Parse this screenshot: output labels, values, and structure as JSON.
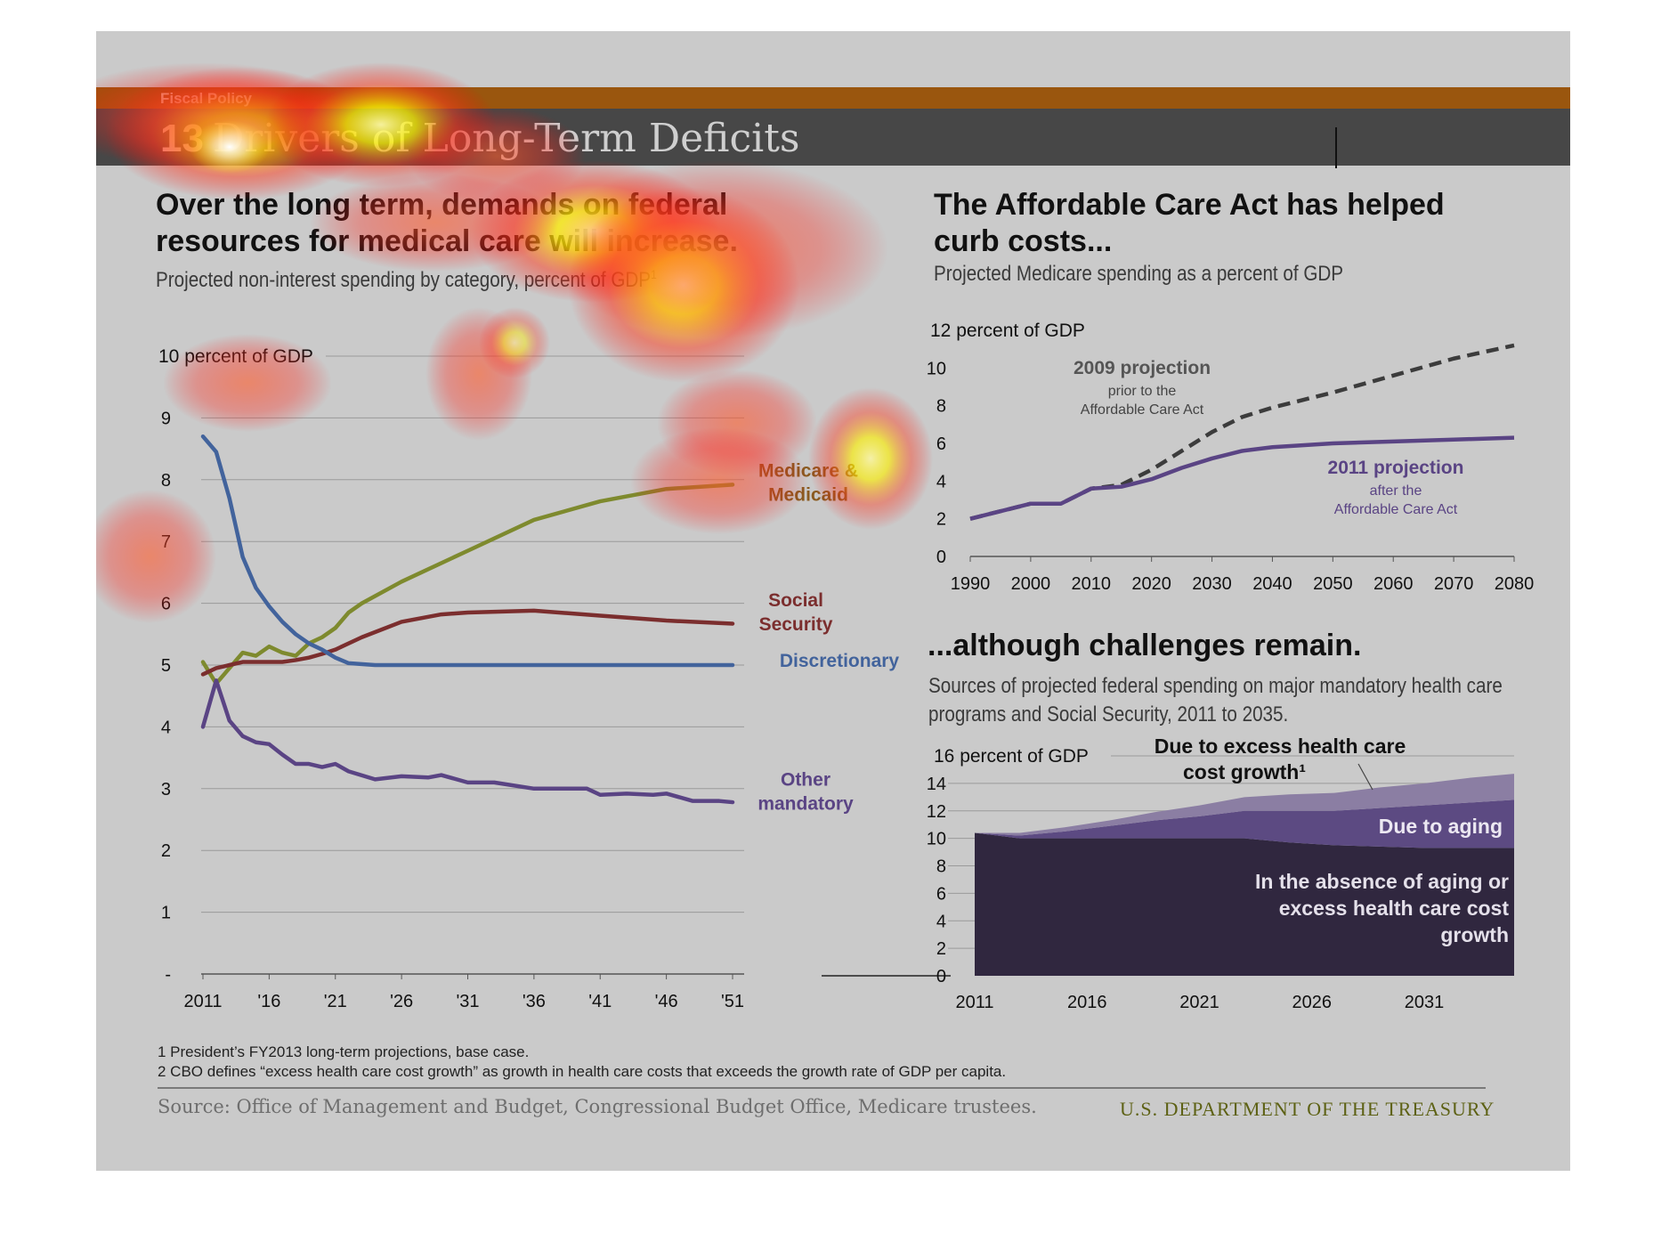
{
  "header": {
    "kicker": "Fiscal Policy",
    "number": "13",
    "title": "Drivers of Long-Term Deficits"
  },
  "left_panel": {
    "headline_line1": "Over the long term, demands on federal",
    "headline_line2": "resources for medical care will increase.",
    "subtitle": "Projected non-interest spending by category, percent of GDP",
    "subtitle_sup": "1"
  },
  "right_top_panel": {
    "headline_line1": "The Affordable Care Act has helped",
    "headline_line2": "curb costs...",
    "subtitle": "Projected Medicare spending as a percent of GDP"
  },
  "right_bottom_panel": {
    "headline": "...although challenges remain.",
    "subtitle_line1": "Sources of projected federal spending on major mandatory health care",
    "subtitle_line2": "programs and Social Security, 2011 to 2035."
  },
  "footnotes": [
    "1 President’s FY2013 long-term projections, base case.",
    "2 CBO defines “excess health care cost growth” as growth in health care costs that exceeds the growth rate of GDP per capita."
  ],
  "source": "Source: Office of Management and Budget, Congressional Budget Office, Medicare trustees.",
  "brand": "U.S. DEPARTMENT OF THE TREASURY",
  "colors": {
    "medicare": "#7e8a2e",
    "social_security": "#7b2e2e",
    "discretionary": "#42639c",
    "other_mandatory": "#5a4484",
    "projection_2009": "#3c3c3c",
    "projection_2011": "#5a4484",
    "area_base": "#30273f",
    "area_aging": "#5c4a82",
    "area_excess": "#8b7ea3"
  },
  "chart_data": [
    {
      "type": "line",
      "ylabel": "10 percent of GDP",
      "ylim": [
        0,
        10
      ],
      "yticks": [
        "-",
        "1",
        "2",
        "3",
        "4",
        "5",
        "6",
        "7",
        "8",
        "9"
      ],
      "xticks": [
        "2011",
        "'16",
        "'21",
        "'26",
        "'31",
        "'36",
        "'41",
        "'46",
        "'51"
      ],
      "xlim": [
        2011,
        2051
      ],
      "grid": true,
      "series": [
        {
          "name": "Medicare & Medicaid",
          "label_lines": [
            "Medicare &",
            "Medicaid"
          ],
          "color": "#7e8a2e",
          "x": [
            2011,
            2012,
            2013,
            2014,
            2015,
            2016,
            2017,
            2018,
            2019,
            2020,
            2021,
            2022,
            2023,
            2026,
            2031,
            2036,
            2041,
            2046,
            2051
          ],
          "y": [
            5.05,
            4.7,
            4.95,
            5.2,
            5.15,
            5.3,
            5.2,
            5.15,
            5.35,
            5.45,
            5.6,
            5.85,
            6.0,
            6.35,
            6.85,
            7.35,
            7.65,
            7.85,
            7.92
          ]
        },
        {
          "name": "Social Security",
          "label_lines": [
            "Social",
            "Security"
          ],
          "color": "#7b2e2e",
          "x": [
            2011,
            2012,
            2013,
            2014,
            2015,
            2016,
            2017,
            2018,
            2019,
            2020,
            2021,
            2023,
            2026,
            2029,
            2031,
            2036,
            2041,
            2046,
            2051
          ],
          "y": [
            4.85,
            4.95,
            5.0,
            5.05,
            5.05,
            5.05,
            5.05,
            5.08,
            5.12,
            5.18,
            5.25,
            5.45,
            5.7,
            5.82,
            5.85,
            5.88,
            5.8,
            5.72,
            5.67
          ]
        },
        {
          "name": "Discretionary",
          "label_lines": [
            "Discretionary"
          ],
          "color": "#42639c",
          "x": [
            2011,
            2012,
            2013,
            2014,
            2015,
            2016,
            2017,
            2018,
            2019,
            2020,
            2021,
            2022,
            2024,
            2026,
            2031,
            2036,
            2041,
            2046,
            2051
          ],
          "y": [
            8.7,
            8.45,
            7.7,
            6.75,
            6.25,
            5.95,
            5.7,
            5.5,
            5.35,
            5.25,
            5.12,
            5.03,
            5.0,
            5.0,
            5.0,
            5.0,
            5.0,
            5.0,
            5.0
          ]
        },
        {
          "name": "Other mandatory",
          "label_lines": [
            "Other",
            "mandatory"
          ],
          "color": "#5a4484",
          "x": [
            2011,
            2012,
            2013,
            2014,
            2015,
            2016,
            2017,
            2018,
            2019,
            2020,
            2021,
            2022,
            2024,
            2026,
            2028,
            2029,
            2031,
            2033,
            2036,
            2038,
            2040,
            2041,
            2043,
            2045,
            2046,
            2048,
            2050,
            2051
          ],
          "y": [
            4.0,
            4.75,
            4.1,
            3.85,
            3.75,
            3.72,
            3.55,
            3.4,
            3.4,
            3.35,
            3.4,
            3.28,
            3.15,
            3.2,
            3.18,
            3.22,
            3.1,
            3.1,
            3.0,
            3.0,
            3.0,
            2.9,
            2.92,
            2.9,
            2.92,
            2.8,
            2.8,
            2.78
          ]
        }
      ]
    },
    {
      "type": "line",
      "ylabel": "12 percent of GDP",
      "ylim": [
        0,
        12
      ],
      "yticks": [
        "0",
        "2",
        "4",
        "6",
        "8",
        "10"
      ],
      "xticks": [
        "1990",
        "2000",
        "2010",
        "2020",
        "2030",
        "2040",
        "2050",
        "2060",
        "2070",
        "2080"
      ],
      "xlim": [
        1990,
        2080
      ],
      "series": [
        {
          "name": "2009 projection",
          "note_lines": [
            "prior to the",
            "Affordable Care Act"
          ],
          "style": "dashed",
          "color": "#3c3c3c",
          "x": [
            1990,
            2000,
            2005,
            2010,
            2015,
            2020,
            2025,
            2030,
            2035,
            2040,
            2050,
            2060,
            2070,
            2080
          ],
          "y": [
            2.0,
            2.8,
            2.8,
            3.6,
            3.8,
            4.6,
            5.6,
            6.6,
            7.4,
            7.9,
            8.7,
            9.6,
            10.5,
            11.2
          ]
        },
        {
          "name": "2011 projection",
          "note_lines": [
            "after the",
            "Affordable Care Act"
          ],
          "style": "solid",
          "color": "#5a4484",
          "x": [
            1990,
            2000,
            2005,
            2010,
            2015,
            2020,
            2025,
            2030,
            2035,
            2040,
            2050,
            2060,
            2070,
            2080
          ],
          "y": [
            2.0,
            2.8,
            2.8,
            3.6,
            3.7,
            4.1,
            4.7,
            5.2,
            5.6,
            5.8,
            6.0,
            6.1,
            6.2,
            6.3
          ]
        }
      ]
    },
    {
      "type": "area",
      "stacked": true,
      "ylabel": "16 percent of GDP",
      "ylim": [
        0,
        16
      ],
      "yticks": [
        "0",
        "2",
        "4",
        "6",
        "8",
        "10",
        "12",
        "14"
      ],
      "xticks": [
        "2011",
        "2016",
        "2021",
        "2026",
        "2031"
      ],
      "xlim": [
        2011,
        2035
      ],
      "x": [
        2011,
        2012,
        2013,
        2015,
        2017,
        2019,
        2021,
        2023,
        2025,
        2027,
        2029,
        2031,
        2033,
        2035
      ],
      "series": [
        {
          "name": "In the absence of aging or excess health care cost growth",
          "label_lines": [
            "In the absence of aging or",
            "excess health care cost",
            "growth"
          ],
          "color": "#30273f",
          "values": [
            10.4,
            10.2,
            10.0,
            10.0,
            10.0,
            10.0,
            10.0,
            10.0,
            9.7,
            9.5,
            9.4,
            9.3,
            9.3,
            9.3
          ]
        },
        {
          "name": "Due to aging",
          "label_lines": [
            "Due to aging"
          ],
          "color": "#5c4a82",
          "values": [
            0.0,
            0.1,
            0.2,
            0.5,
            0.9,
            1.3,
            1.6,
            2.0,
            2.3,
            2.5,
            2.8,
            3.1,
            3.3,
            3.5
          ]
        },
        {
          "name": "Due to excess health care cost growth",
          "label_lines": [
            "Due to excess  health care",
            "cost growth¹"
          ],
          "color": "#8b7ea3",
          "values": [
            0.0,
            0.1,
            0.2,
            0.3,
            0.4,
            0.6,
            0.8,
            1.0,
            1.2,
            1.3,
            1.5,
            1.6,
            1.8,
            1.9
          ]
        }
      ]
    }
  ]
}
